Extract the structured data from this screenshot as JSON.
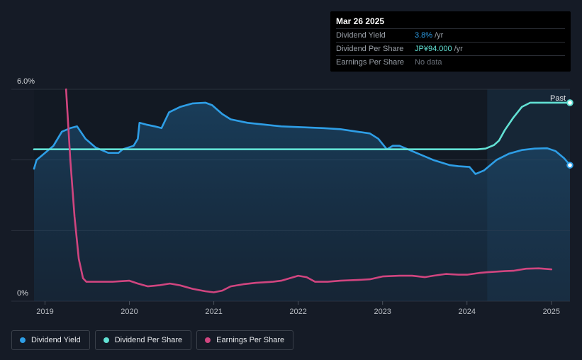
{
  "tooltip": {
    "date": "Mar 26 2025",
    "rows": [
      {
        "label": "Dividend Yield",
        "value": "3.8%",
        "unit": "/yr"
      },
      {
        "label": "Dividend Per Share",
        "value": "JP¥94.000",
        "unit": "/yr"
      },
      {
        "label": "Earnings Per Share",
        "value": "No data",
        "unit": ""
      }
    ]
  },
  "legend": [
    {
      "label": "Dividend Yield",
      "color": "#2e9ee6"
    },
    {
      "label": "Dividend Per Share",
      "color": "#62e1d4"
    },
    {
      "label": "Earnings Per Share",
      "color": "#d0457f"
    }
  ],
  "chart_data": {
    "type": "line",
    "y_tick_labels": [
      "6.0%",
      "0%"
    ],
    "ylim": [
      0,
      6
    ],
    "x_ticks": [
      2019,
      2020,
      2021,
      2022,
      2023,
      2024,
      2025
    ],
    "xlim": [
      2018.87,
      2025.22
    ],
    "past_label": "Past",
    "forecast_start": 2024.24,
    "grid": true,
    "series": [
      {
        "name": "Dividend Yield",
        "color": "#2e9ee6",
        "unit": "%",
        "fill": true,
        "points": [
          [
            2018.87,
            3.75
          ],
          [
            2018.9,
            4.0
          ],
          [
            2019.0,
            4.2
          ],
          [
            2019.1,
            4.4
          ],
          [
            2019.2,
            4.8
          ],
          [
            2019.3,
            4.9
          ],
          [
            2019.38,
            4.95
          ],
          [
            2019.48,
            4.6
          ],
          [
            2019.6,
            4.35
          ],
          [
            2019.75,
            4.2
          ],
          [
            2019.87,
            4.2
          ],
          [
            2019.92,
            4.3
          ],
          [
            2020.05,
            4.4
          ],
          [
            2020.1,
            4.6
          ],
          [
            2020.12,
            5.05
          ],
          [
            2020.2,
            5.0
          ],
          [
            2020.3,
            4.95
          ],
          [
            2020.38,
            4.9
          ],
          [
            2020.47,
            5.35
          ],
          [
            2020.6,
            5.5
          ],
          [
            2020.75,
            5.6
          ],
          [
            2020.9,
            5.62
          ],
          [
            2020.98,
            5.55
          ],
          [
            2021.1,
            5.3
          ],
          [
            2021.2,
            5.15
          ],
          [
            2021.4,
            5.05
          ],
          [
            2021.6,
            5.0
          ],
          [
            2021.8,
            4.95
          ],
          [
            2022.0,
            4.93
          ],
          [
            2022.3,
            4.9
          ],
          [
            2022.5,
            4.87
          ],
          [
            2022.7,
            4.8
          ],
          [
            2022.85,
            4.75
          ],
          [
            2022.95,
            4.6
          ],
          [
            2023.05,
            4.3
          ],
          [
            2023.12,
            4.4
          ],
          [
            2023.2,
            4.4
          ],
          [
            2023.4,
            4.2
          ],
          [
            2023.6,
            4.0
          ],
          [
            2023.8,
            3.85
          ],
          [
            2023.9,
            3.82
          ],
          [
            2024.03,
            3.8
          ],
          [
            2024.1,
            3.6
          ],
          [
            2024.2,
            3.7
          ],
          [
            2024.35,
            4.0
          ],
          [
            2024.5,
            4.18
          ],
          [
            2024.65,
            4.28
          ],
          [
            2024.8,
            4.32
          ],
          [
            2024.95,
            4.33
          ],
          [
            2025.05,
            4.25
          ],
          [
            2025.15,
            4.05
          ],
          [
            2025.22,
            3.85
          ]
        ]
      },
      {
        "name": "Dividend Per Share",
        "color": "#62e1d4",
        "fill": false,
        "points": [
          [
            2018.87,
            4.3
          ],
          [
            2024.12,
            4.3
          ],
          [
            2024.22,
            4.32
          ],
          [
            2024.32,
            4.42
          ],
          [
            2024.38,
            4.55
          ],
          [
            2024.45,
            4.85
          ],
          [
            2024.55,
            5.2
          ],
          [
            2024.65,
            5.5
          ],
          [
            2024.75,
            5.62
          ],
          [
            2025.22,
            5.62
          ]
        ]
      },
      {
        "name": "Earnings Per Share",
        "color": "#d0457f",
        "fill": false,
        "points": [
          [
            2019.25,
            6.0
          ],
          [
            2019.3,
            4.0
          ],
          [
            2019.35,
            2.4
          ],
          [
            2019.4,
            1.2
          ],
          [
            2019.45,
            0.65
          ],
          [
            2019.49,
            0.55
          ],
          [
            2019.6,
            0.55
          ],
          [
            2019.8,
            0.55
          ],
          [
            2020.0,
            0.58
          ],
          [
            2020.1,
            0.5
          ],
          [
            2020.22,
            0.42
          ],
          [
            2020.35,
            0.45
          ],
          [
            2020.48,
            0.5
          ],
          [
            2020.6,
            0.45
          ],
          [
            2020.75,
            0.35
          ],
          [
            2020.9,
            0.28
          ],
          [
            2021.0,
            0.25
          ],
          [
            2021.1,
            0.3
          ],
          [
            2021.2,
            0.42
          ],
          [
            2021.35,
            0.48
          ],
          [
            2021.5,
            0.52
          ],
          [
            2021.7,
            0.55
          ],
          [
            2021.8,
            0.58
          ],
          [
            2021.9,
            0.65
          ],
          [
            2022.0,
            0.72
          ],
          [
            2022.1,
            0.68
          ],
          [
            2022.2,
            0.55
          ],
          [
            2022.35,
            0.55
          ],
          [
            2022.5,
            0.58
          ],
          [
            2022.7,
            0.6
          ],
          [
            2022.85,
            0.62
          ],
          [
            2023.0,
            0.7
          ],
          [
            2023.2,
            0.72
          ],
          [
            2023.35,
            0.72
          ],
          [
            2023.5,
            0.68
          ],
          [
            2023.6,
            0.72
          ],
          [
            2023.75,
            0.77
          ],
          [
            2023.9,
            0.75
          ],
          [
            2024.0,
            0.75
          ],
          [
            2024.15,
            0.8
          ],
          [
            2024.25,
            0.82
          ],
          [
            2024.45,
            0.85
          ],
          [
            2024.55,
            0.86
          ],
          [
            2024.7,
            0.92
          ],
          [
            2024.85,
            0.93
          ],
          [
            2025.0,
            0.9
          ]
        ]
      }
    ]
  }
}
